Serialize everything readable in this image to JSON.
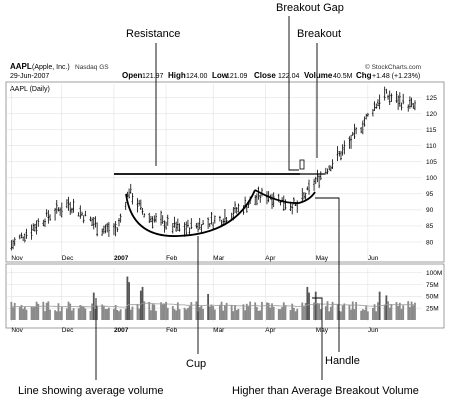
{
  "header": {
    "symbol": "AAPL",
    "company": "(Apple, Inc.)",
    "exchange": "Nasdaq GS",
    "date": "29-Jun-2007",
    "watermark": "© StockCharts.com",
    "open_label": "Open",
    "open": "121.97",
    "high_label": "High",
    "high": "124.00",
    "low_label": "Low",
    "low": "121.09",
    "close_label": "Close",
    "close": "122.04",
    "volume_label": "Volume",
    "volume": "40.5M",
    "change_label": "Chg",
    "change": "+1.48 (+1.23%)",
    "chart_label": "AAPL (Daily)"
  },
  "annotations": {
    "resistance": "Resistance",
    "breakout_gap": "Breakout Gap",
    "breakout": "Breakout",
    "cup": "Cup",
    "handle": "Handle",
    "avg_volume": "Line showing average volume",
    "breakout_volume": "Higher than Average Breakout Volume"
  },
  "chart_data": [
    {
      "type": "candlestick",
      "title": "AAPL (Daily)",
      "x_ticks": [
        "Nov",
        "Dec",
        "2007",
        "Feb",
        "Mar",
        "Apr",
        "May",
        "Jun"
      ],
      "y_ticks": [
        80,
        85,
        90,
        95,
        100,
        105,
        110,
        115,
        120,
        125
      ],
      "ylim": [
        75,
        128
      ],
      "resistance_level": 97,
      "approx_price_path": [
        {
          "date": "2006-11-01",
          "price": 79
        },
        {
          "date": "2006-11-20",
          "price": 87
        },
        {
          "date": "2006-12-05",
          "price": 92
        },
        {
          "date": "2006-12-25",
          "price": 84
        },
        {
          "date": "2007-01-03",
          "price": 84
        },
        {
          "date": "2007-01-10",
          "price": 96
        },
        {
          "date": "2007-01-20",
          "price": 88
        },
        {
          "date": "2007-02-10",
          "price": 84
        },
        {
          "date": "2007-03-05",
          "price": 87
        },
        {
          "date": "2007-04-01",
          "price": 95
        },
        {
          "date": "2007-04-20",
          "price": 91
        },
        {
          "date": "2007-05-01",
          "price": 99
        },
        {
          "date": "2007-05-20",
          "price": 110
        },
        {
          "date": "2007-06-10",
          "price": 126
        },
        {
          "date": "2007-06-29",
          "price": 122
        }
      ]
    },
    {
      "type": "bar",
      "title": "",
      "y_ticks": [
        "25M",
        "50M",
        "75M",
        "100M"
      ],
      "ylim": [
        0,
        110
      ],
      "x_ticks": [
        "Nov",
        "Dec",
        "2007",
        "Feb",
        "Mar",
        "Apr",
        "May",
        "Jun"
      ]
    }
  ]
}
